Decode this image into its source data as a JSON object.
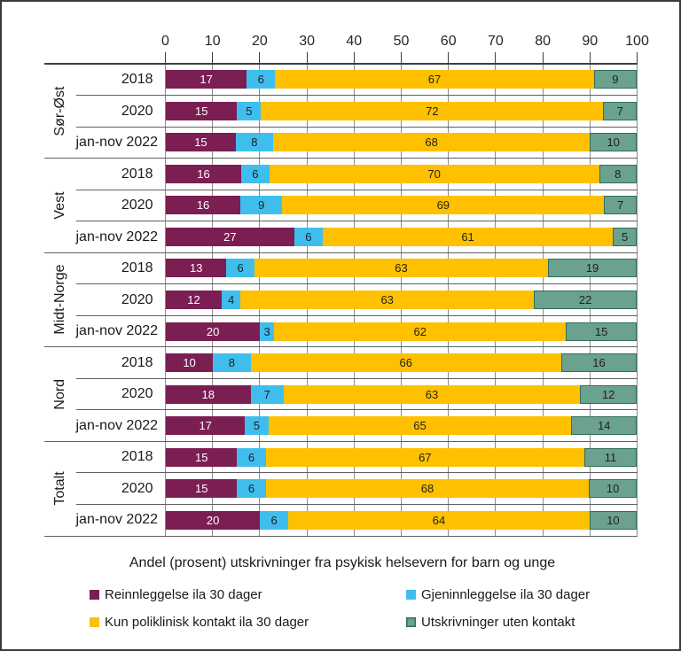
{
  "chart_data": {
    "type": "bar",
    "orientation": "horizontal",
    "stacked": true,
    "normalized_to_100": true,
    "title": "Andel (prosent) utskrivninger fra psykisk helsevern for barn og unge",
    "xlim": [
      0,
      100
    ],
    "axis_ticks": [
      0,
      10,
      20,
      30,
      40,
      50,
      60,
      70,
      80,
      90,
      100
    ],
    "axis_position": "top",
    "grid": "both",
    "legend_position": "bottom-two-columns",
    "series": [
      {
        "name": "Reinnleggelse ila 30 dager",
        "color": "#7B1E52",
        "label_color": "#ffffff"
      },
      {
        "name": "Gjeninnleggelse ila 30 dager",
        "color": "#3FBEEE",
        "label_color": "#1f1f1f"
      },
      {
        "name": "Kun poliklinisk kontakt ila 30 dager",
        "color": "#FFC000",
        "label_color": "#1f1f1f"
      },
      {
        "name": "Utskrivninger uten kontakt",
        "color": "#6BA18F",
        "border_color": "#2F6E5F",
        "label_color": "#1f1f1f"
      }
    ],
    "groups": [
      {
        "label": "Sør-Øst",
        "rows": [
          {
            "label": "2018",
            "values": [
              17,
              6,
              67,
              9
            ]
          },
          {
            "label": "2020",
            "values": [
              15,
              5,
              72,
              7
            ]
          },
          {
            "label": "jan-nov 2022",
            "values": [
              15,
              8,
              68,
              10
            ]
          }
        ]
      },
      {
        "label": "Vest",
        "rows": [
          {
            "label": "2018",
            "values": [
              16,
              6,
              70,
              8
            ]
          },
          {
            "label": "2020",
            "values": [
              16,
              9,
              69,
              7
            ]
          },
          {
            "label": "jan-nov 2022",
            "values": [
              27,
              6,
              61,
              5
            ]
          }
        ]
      },
      {
        "label": "Midt-Norge",
        "rows": [
          {
            "label": "2018",
            "values": [
              13,
              6,
              63,
              19
            ]
          },
          {
            "label": "2020",
            "values": [
              12,
              4,
              63,
              22
            ]
          },
          {
            "label": "jan-nov 2022",
            "values": [
              20,
              3,
              62,
              15
            ]
          }
        ]
      },
      {
        "label": "Nord",
        "rows": [
          {
            "label": "2018",
            "values": [
              10,
              8,
              66,
              16
            ]
          },
          {
            "label": "2020",
            "values": [
              18,
              7,
              63,
              12
            ]
          },
          {
            "label": "jan-nov 2022",
            "values": [
              17,
              5,
              65,
              14
            ]
          }
        ]
      },
      {
        "label": "Totalt",
        "rows": [
          {
            "label": "2018",
            "values": [
              15,
              6,
              67,
              11
            ]
          },
          {
            "label": "2020",
            "values": [
              15,
              6,
              68,
              10
            ]
          },
          {
            "label": "jan-nov 2022",
            "values": [
              20,
              6,
              64,
              10
            ]
          }
        ]
      }
    ]
  }
}
